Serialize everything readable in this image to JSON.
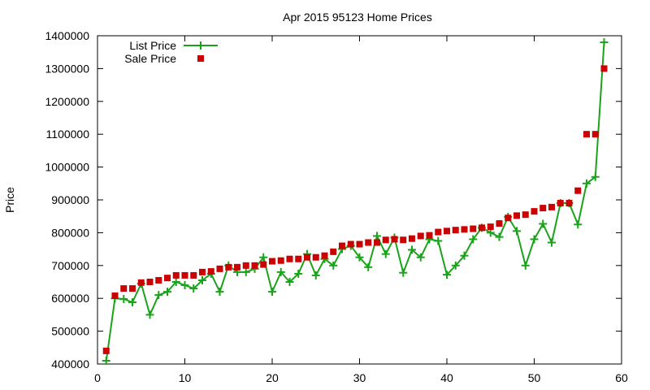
{
  "chart_data": {
    "type": "line",
    "title": "Apr 2015 95123 Home Prices",
    "xlabel": "",
    "ylabel": "Price",
    "xlim": [
      0,
      60
    ],
    "ylim": [
      400000,
      1400000
    ],
    "x_ticks": [
      0,
      10,
      20,
      30,
      40,
      50,
      60
    ],
    "y_ticks": [
      400000,
      500000,
      600000,
      700000,
      800000,
      900000,
      1000000,
      1100000,
      1200000,
      1300000,
      1400000
    ],
    "x_tick_labels": [
      "0",
      "10",
      "20",
      "30",
      "40",
      "50",
      "60"
    ],
    "y_tick_labels": [
      "400000",
      "500000",
      "600000",
      "700000",
      "800000",
      "900000",
      "1000000",
      "1100000",
      "1200000",
      "1300000",
      "1400000"
    ],
    "legend_position": "top-left",
    "grid": false,
    "x": [
      1,
      2,
      3,
      4,
      5,
      6,
      7,
      8,
      9,
      10,
      11,
      12,
      13,
      14,
      15,
      16,
      17,
      18,
      19,
      20,
      21,
      22,
      23,
      24,
      25,
      26,
      27,
      28,
      29,
      30,
      31,
      32,
      33,
      34,
      35,
      36,
      37,
      38,
      39,
      40,
      41,
      42,
      43,
      44,
      45,
      46,
      47,
      48,
      49,
      50,
      51,
      52,
      53,
      54,
      55,
      56,
      57,
      58
    ],
    "series": [
      {
        "name": "List Price",
        "style": "line-plus",
        "color": "#1aa31a",
        "values": [
          410000,
          600000,
          598000,
          588000,
          645000,
          550000,
          610000,
          620000,
          650000,
          640000,
          630000,
          655000,
          675000,
          620000,
          700000,
          680000,
          680000,
          690000,
          725000,
          620000,
          680000,
          650000,
          675000,
          735000,
          670000,
          720000,
          700000,
          750000,
          760000,
          725000,
          695000,
          790000,
          735000,
          785000,
          678000,
          748000,
          725000,
          780000,
          775000,
          672000,
          700000,
          730000,
          780000,
          815000,
          800000,
          787000,
          848000,
          805000,
          700000,
          780000,
          827000,
          770000,
          890000,
          890000,
          825000,
          950000,
          970000,
          1380000
        ]
      },
      {
        "name": "Sale Price",
        "style": "square-marker",
        "color": "#cc0000",
        "values": [
          440000,
          608000,
          630000,
          630000,
          648000,
          650000,
          655000,
          662000,
          670000,
          670000,
          670000,
          680000,
          682000,
          690000,
          695000,
          695000,
          700000,
          700000,
          703000,
          713000,
          715000,
          720000,
          720000,
          725000,
          725000,
          730000,
          742000,
          760000,
          765000,
          765000,
          770000,
          770000,
          778000,
          780000,
          778000,
          782000,
          790000,
          792000,
          802000,
          805000,
          808000,
          810000,
          812000,
          815000,
          818000,
          828000,
          845000,
          852000,
          855000,
          865000,
          875000,
          878000,
          890000,
          890000,
          928000,
          1100000,
          1100000,
          1300000
        ]
      }
    ]
  }
}
